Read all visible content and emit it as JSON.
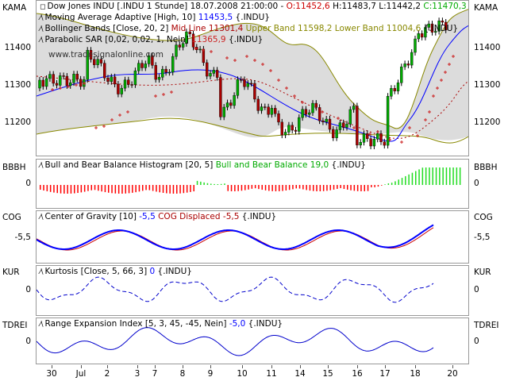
{
  "kama_panel": {
    "side_label": "KAMA",
    "title_main": "Dow Jones INDU [.INDU  1 Stunde] 18.07.2008 21:00:00 - ",
    "ohlc": {
      "o": "O:11452,6",
      "h": "H:11483,7",
      "l": "L:11442,2",
      "c": "C:11470,3"
    },
    "line2": "Moving Average Adaptive [High, 10] ",
    "line2_val": "11453,5",
    "line2_tail": " {.INDU}",
    "line3": "Bollinger Bands [Close, 20, 2] ",
    "line3_mid": "Mid Line 11301,4",
    "line3_bands": " Upper Band 11598,2 Lower Band 11004,6",
    "line3_tail": " {.INDU}",
    "line4": "Parabolic SAR [0,02, 0,02, 1, Nein] ",
    "line4_val": "11365,9",
    "line4_tail": " {.INDU}",
    "watermark": "www.tradesignalonline.com",
    "ticks": [
      "11400",
      "11300",
      "11200"
    ]
  },
  "bbbh_panel": {
    "side_label": "BBBH",
    "title": "Bull and Bear Balance Histogram [20, 5] ",
    "title_val": "Bull and Bear Balance 19,0",
    "title_tail": " {.INDU}",
    "tick": "0"
  },
  "cog_panel": {
    "side_label": "COG",
    "title": "Center of Gravity [10] ",
    "title_val": "-5,5",
    "title_disp": " COG Displaced -5,5",
    "title_tail": " {.INDU}",
    "tick": "-5,5"
  },
  "kur_panel": {
    "side_label": "KUR",
    "title": "Kurtosis [Close, 5, 66, 3] ",
    "title_val": "0",
    "title_tail": " {.INDU}",
    "tick": "0"
  },
  "tdrei_panel": {
    "side_label": "TDREI",
    "title": "Range Expansion Index [5, 3, 45, -45, Nein] ",
    "title_val": "-5,0",
    "title_tail": " {.INDU}",
    "tick": "0"
  },
  "x_axis": [
    "30",
    "Jul",
    "2",
    "3",
    "7",
    "8",
    "9",
    "10",
    "11",
    "14",
    "15",
    "16",
    "17",
    "18",
    "20"
  ],
  "colors": {
    "ohlc_red": "#cc0000",
    "ohlc_green": "#00aa00",
    "kama_blue": "#0000ff",
    "mid_red": "#aa0000",
    "upper_olive": "#888800",
    "sar_red": "#cc2222",
    "bbbh_red": "#ff0000",
    "bbbh_green": "#22dd22"
  }
}
